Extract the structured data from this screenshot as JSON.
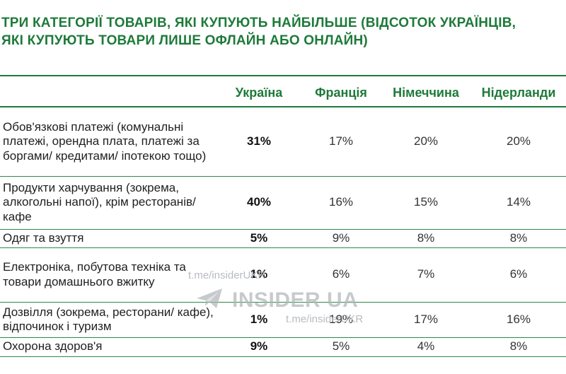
{
  "title": {
    "line1": "ТРИ КАТЕГОРІЇ ТОВАРІВ, ЯКІ КУПУЮТЬ НАЙБІЛЬШЕ (ВІДСОТОК УКРАЇНЦІВ,",
    "line2": "ЯКІ КУПУЮТЬ ТОВАРИ ЛИШЕ ОФЛАЙН АБО ОНЛАЙН)"
  },
  "table": {
    "headers": [
      "",
      "Україна",
      "Франція",
      "Німеччина",
      "Нідерланди"
    ],
    "rows": [
      {
        "label": "Обов'язкові платежі (комунальні платежі, орендна плата, платежі за боргами/ кредитами/ іпотекою тощо)",
        "ukraine": "31%",
        "france": "17%",
        "germany": "20%",
        "netherlands": "20%"
      },
      {
        "label": "Продукти харчування (зокрема, алкогольні напої), крім ресторанів/кафе",
        "ukraine": "40%",
        "france": "16%",
        "germany": "15%",
        "netherlands": "14%"
      },
      {
        "label": "Одяг та взуття",
        "ukraine": "5%",
        "france": "9%",
        "germany": "8%",
        "netherlands": "8%"
      },
      {
        "label": "Електроніка, побутова техніка та товари домашнього вжитку",
        "ukraine": "1%",
        "france": "6%",
        "germany": "7%",
        "netherlands": "6%"
      },
      {
        "label": "Дозвілля (зокрема, ресторани/ кафе), відпочинок і туризм",
        "ukraine": "1%",
        "france": "19%",
        "germany": "17%",
        "netherlands": "16%"
      },
      {
        "label": "Охорона здоров'я",
        "ukraine": "9%",
        "france": "5%",
        "germany": "4%",
        "netherlands": "8%"
      }
    ]
  },
  "watermark": {
    "link": "t.me/insiderUKR",
    "logo_text": "INSIDER UA",
    "color": "#b0b4b8"
  },
  "colors": {
    "accent": "#1e7a3a"
  }
}
